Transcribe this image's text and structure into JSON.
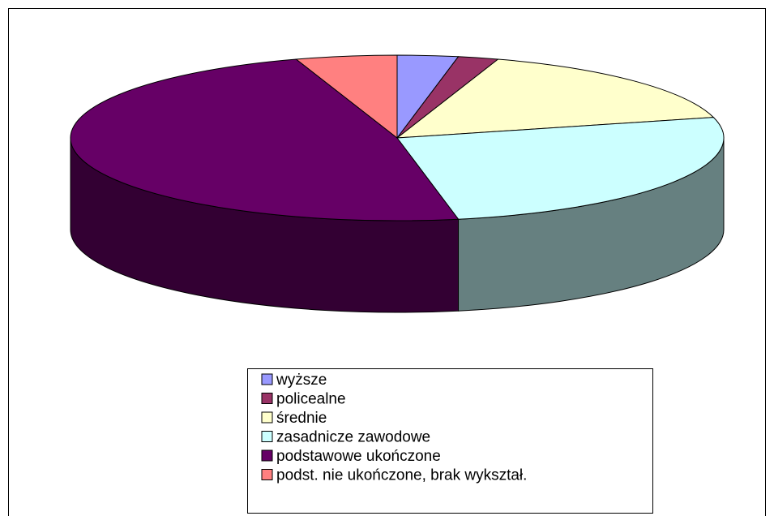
{
  "chart_data": {
    "type": "pie",
    "categories": [
      "wyższe",
      "policealne",
      "średnie",
      "zasadnicze zawodowe",
      "podstawowe ukończone",
      "podst. nie ukończone, brak wykształ."
    ],
    "values": [
      3,
      2,
      16,
      26,
      48,
      5
    ],
    "colors": [
      "#9999ff",
      "#993366",
      "#ffffcc",
      "#ccffff",
      "#660066",
      "#ff8080"
    ],
    "legend": "bottom"
  }
}
